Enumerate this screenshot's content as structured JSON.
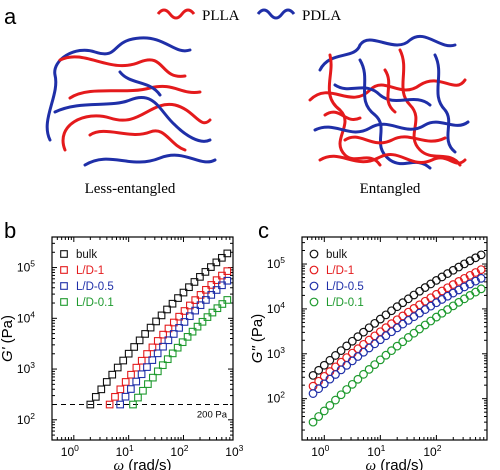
{
  "panel_a": {
    "letter": "a",
    "legend": [
      {
        "label": "PLLA",
        "color": "#e41a1c"
      },
      {
        "label": "PDLA",
        "color": "#1f2fa8"
      }
    ],
    "left_caption": "Less-entangled",
    "right_caption": "Entangled"
  },
  "colors": {
    "bulk": "#111111",
    "L/D-1": "#e41a1c",
    "L/D-0.5": "#1f2fa8",
    "L/D-0.1": "#1e9a2e"
  },
  "chart_data": [
    {
      "panel": "b",
      "type": "scatter",
      "xlabel_sym": "ω",
      "xlabel_rest": " (rad/s)",
      "ylabel_sym": "G'",
      "ylabel_rest": " (Pa)",
      "xscale": "log",
      "yscale": "log",
      "xlim": [
        0.4,
        800
      ],
      "ylim": [
        40,
        400000
      ],
      "xticks": [
        {
          "v": 1,
          "e": "0"
        },
        {
          "v": 10,
          "e": "1"
        },
        {
          "v": 100,
          "e": "2"
        },
        {
          "v": 1000,
          "e": "3"
        }
      ],
      "yticks": [
        {
          "v": 100,
          "e": "2"
        },
        {
          "v": 1000,
          "e": "3"
        },
        {
          "v": 10000,
          "e": "4"
        },
        {
          "v": 100000,
          "e": "5"
        }
      ],
      "marker": "square",
      "legend_position": "top-left",
      "reference_line": {
        "y": 200,
        "label": "200 Pa"
      },
      "series": [
        {
          "name": "bulk",
          "x_range": [
            2.0,
            630
          ],
          "y_range": [
            200,
            190000
          ],
          "points": 26
        },
        {
          "name": "L/D-1",
          "x_range": [
            4.5,
            630
          ],
          "y_range": [
            200,
            85000
          ],
          "points": 23
        },
        {
          "name": "L/D-0.5",
          "x_range": [
            7.0,
            630
          ],
          "y_range": [
            200,
            55000
          ],
          "points": 21
        },
        {
          "name": "L/D-0.1",
          "x_range": [
            12.0,
            630
          ],
          "y_range": [
            200,
            23000
          ],
          "points": 20
        }
      ]
    },
    {
      "panel": "c",
      "type": "scatter",
      "xlabel_sym": "ω",
      "xlabel_rest": " (rad/s)",
      "ylabel_sym": "G\"",
      "ylabel_rest": " (Pa)",
      "xscale": "log",
      "yscale": "log",
      "xlim": [
        0.4,
        800
      ],
      "ylim": [
        12,
        400000
      ],
      "xticks": [
        {
          "v": 1,
          "e": "0"
        },
        {
          "v": 10,
          "e": "1"
        },
        {
          "v": 100,
          "e": "2"
        }
      ],
      "yticks": [
        {
          "v": 100,
          "e": "2"
        },
        {
          "v": 1000,
          "e": "3"
        },
        {
          "v": 10000,
          "e": "4"
        },
        {
          "v": 100000,
          "e": "5"
        }
      ],
      "marker": "circle",
      "legend_position": "top-left",
      "series": [
        {
          "name": "bulk",
          "x_range": [
            0.63,
            630
          ],
          "y_range": [
            330,
            160000
          ],
          "points": 31
        },
        {
          "name": "L/D-1",
          "x_range": [
            0.63,
            630
          ],
          "y_range": [
            190,
            75000
          ],
          "points": 31
        },
        {
          "name": "L/D-0.5",
          "x_range": [
            0.63,
            630
          ],
          "y_range": [
            130,
            48000
          ],
          "points": 31
        },
        {
          "name": "L/D-0.1",
          "x_range": [
            0.63,
            630
          ],
          "y_range": [
            30,
            28000
          ],
          "points": 31
        }
      ]
    }
  ]
}
